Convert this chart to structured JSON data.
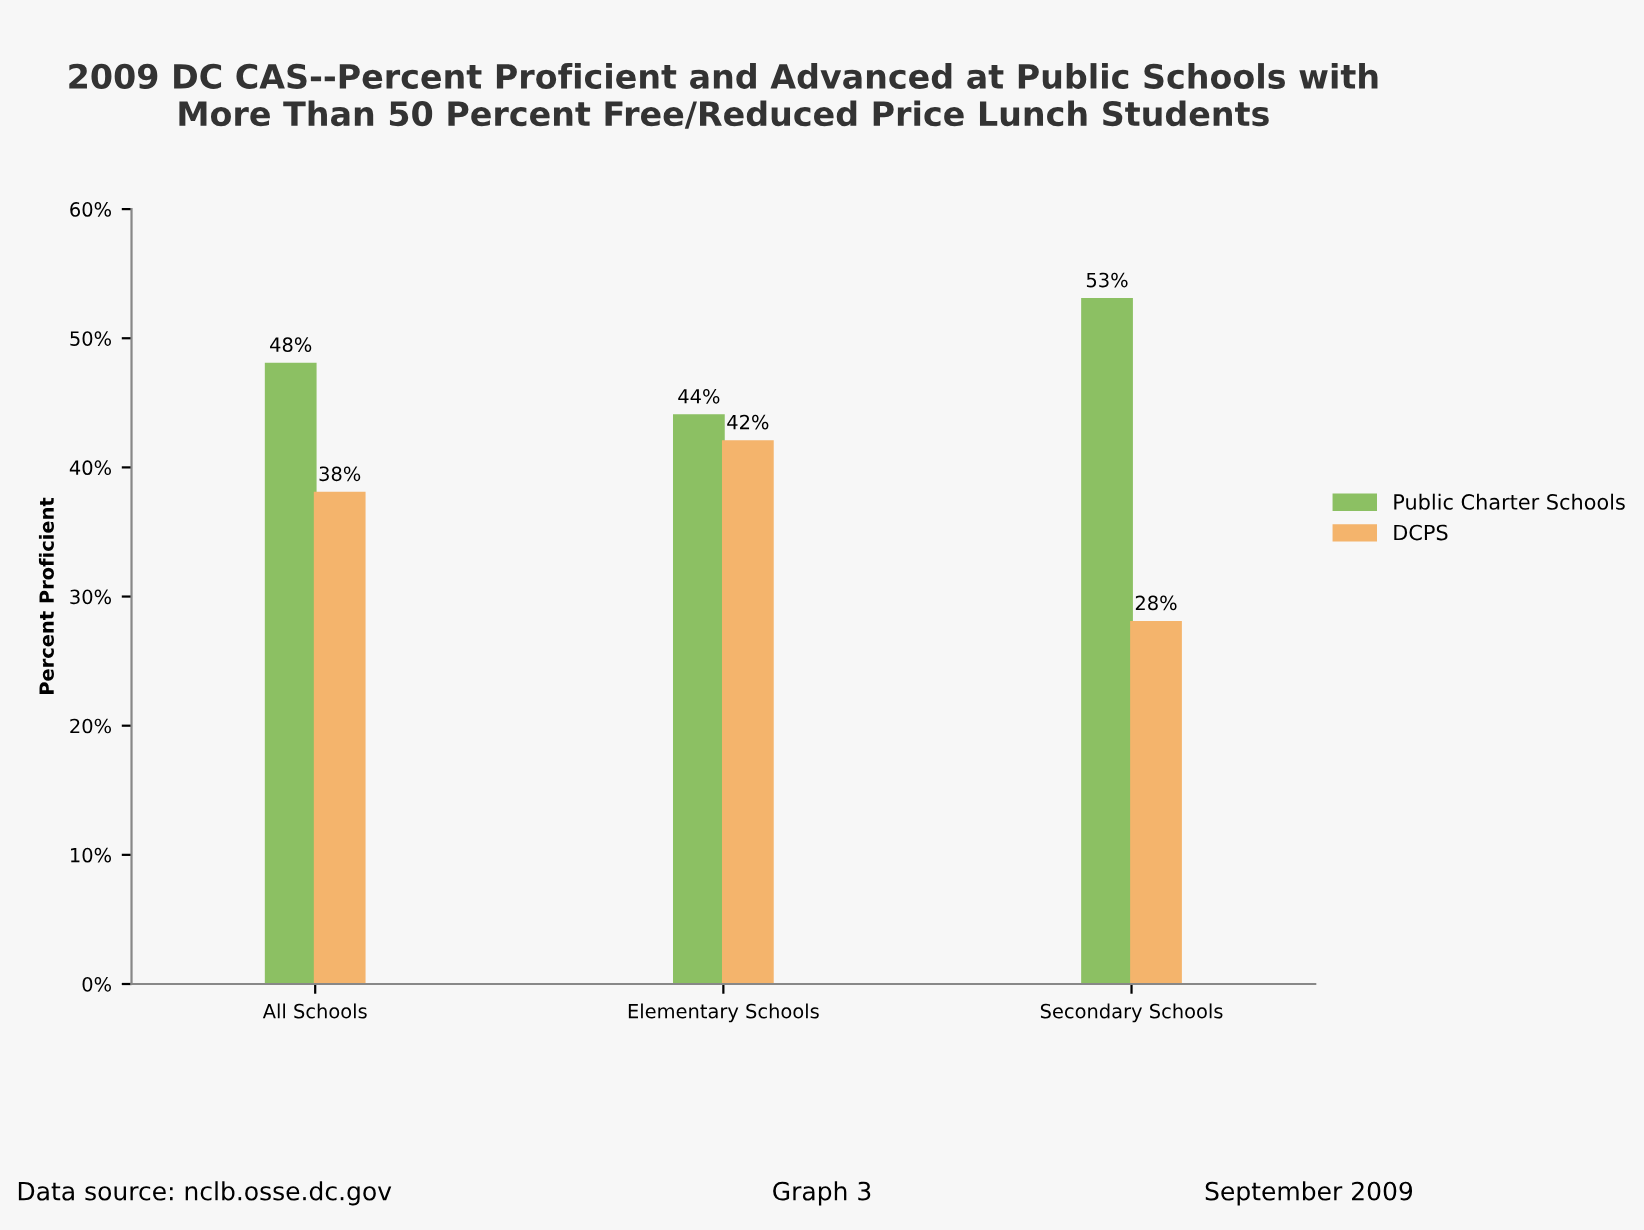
{
  "chart_data": {
    "type": "bar",
    "title": "2009 DC CAS--Percent Proficient and Advanced at Public Schools with\nMore Than 50 Percent Free/Reduced Price Lunch Students",
    "ylabel": "Percent Proficient",
    "categories": [
      "All Schools",
      "Elementary Schools",
      "Secondary Schools"
    ],
    "series": [
      {
        "name": "Public Charter Schools",
        "color": "#8cc063",
        "values": [
          48,
          44,
          53
        ],
        "value_labels": [
          "48%",
          "44%",
          "53%"
        ]
      },
      {
        "name": "DCPS",
        "color": "#f4b46c",
        "values": [
          38,
          42,
          28
        ],
        "value_labels": [
          "38%",
          "42%",
          "28%"
        ]
      }
    ],
    "ylim": [
      0,
      60
    ],
    "yticks": [
      {
        "value": 0,
        "label": "0%"
      },
      {
        "value": 10,
        "label": "10%"
      },
      {
        "value": 20,
        "label": "20%"
      },
      {
        "value": 30,
        "label": "30%"
      },
      {
        "value": 40,
        "label": "40%"
      },
      {
        "value": 50,
        "label": "50%"
      },
      {
        "value": 60,
        "label": "60%"
      }
    ],
    "legend": "right",
    "annotations": [
      "Data source: nclb.osse.dc.gov",
      "Graph 3",
      "September 2009"
    ]
  }
}
